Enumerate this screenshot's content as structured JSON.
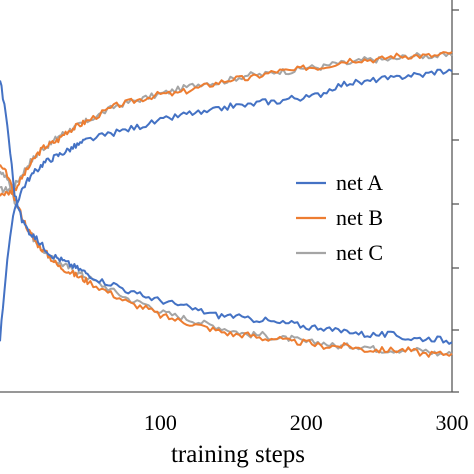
{
  "chart_data": {
    "type": "line",
    "xlabel": "training steps",
    "ylabel": "",
    "title": "",
    "xlim": [
      -10,
      300
    ],
    "ylim": [
      0,
      1
    ],
    "xticks": [
      100,
      200,
      300
    ],
    "legend_placement": "right",
    "grid": false,
    "series": [
      {
        "name": "net A",
        "color": "#4472C4",
        "kind": "rising",
        "x": [
          -10,
          -5,
          0,
          5,
          10,
          15,
          20,
          25,
          30,
          35,
          40,
          45,
          50,
          60,
          70,
          80,
          90,
          100,
          110,
          120,
          130,
          140,
          150,
          160,
          170,
          180,
          190,
          200,
          210,
          220,
          230,
          240,
          250,
          260,
          270,
          280,
          290,
          300
        ],
        "y": [
          0.14,
          0.35,
          0.48,
          0.53,
          0.56,
          0.58,
          0.6,
          0.61,
          0.62,
          0.63,
          0.64,
          0.65,
          0.66,
          0.67,
          0.68,
          0.69,
          0.7,
          0.71,
          0.72,
          0.73,
          0.73,
          0.74,
          0.75,
          0.75,
          0.76,
          0.76,
          0.77,
          0.77,
          0.78,
          0.8,
          0.81,
          0.81,
          0.82,
          0.82,
          0.83,
          0.83,
          0.84,
          0.84
        ]
      },
      {
        "name": "net B",
        "color": "#ED7D31",
        "kind": "rising",
        "x": [
          -10,
          -5,
          0,
          5,
          10,
          15,
          20,
          25,
          30,
          35,
          40,
          45,
          50,
          60,
          70,
          80,
          90,
          100,
          110,
          120,
          130,
          140,
          150,
          160,
          170,
          180,
          190,
          200,
          210,
          220,
          230,
          240,
          250,
          260,
          270,
          280,
          290,
          300
        ],
        "y": [
          0.52,
          0.52,
          0.53,
          0.56,
          0.59,
          0.62,
          0.64,
          0.65,
          0.66,
          0.68,
          0.69,
          0.7,
          0.71,
          0.73,
          0.75,
          0.76,
          0.77,
          0.78,
          0.78,
          0.79,
          0.8,
          0.81,
          0.82,
          0.82,
          0.83,
          0.84,
          0.84,
          0.85,
          0.85,
          0.86,
          0.87,
          0.87,
          0.87,
          0.88,
          0.88,
          0.88,
          0.88,
          0.89
        ]
      },
      {
        "name": "net C",
        "color": "#A5A5A5",
        "kind": "rising",
        "x": [
          -10,
          -5,
          0,
          5,
          10,
          15,
          20,
          25,
          30,
          35,
          40,
          45,
          50,
          60,
          70,
          80,
          90,
          100,
          110,
          120,
          130,
          140,
          150,
          160,
          170,
          180,
          190,
          200,
          210,
          220,
          230,
          240,
          250,
          260,
          270,
          280,
          290,
          300
        ],
        "y": [
          0.53,
          0.53,
          0.54,
          0.57,
          0.6,
          0.62,
          0.64,
          0.65,
          0.67,
          0.68,
          0.69,
          0.7,
          0.71,
          0.73,
          0.75,
          0.76,
          0.77,
          0.78,
          0.79,
          0.8,
          0.81,
          0.81,
          0.82,
          0.83,
          0.83,
          0.84,
          0.84,
          0.85,
          0.85,
          0.86,
          0.86,
          0.87,
          0.87,
          0.87,
          0.88,
          0.88,
          0.88,
          0.88
        ]
      },
      {
        "name": "net A",
        "color": "#4472C4",
        "kind": "falling",
        "x": [
          -10,
          -5,
          0,
          5,
          10,
          15,
          20,
          25,
          30,
          35,
          40,
          45,
          50,
          60,
          70,
          80,
          90,
          100,
          110,
          120,
          130,
          140,
          150,
          160,
          170,
          180,
          190,
          200,
          210,
          220,
          230,
          240,
          250,
          260,
          270,
          280,
          290,
          300
        ],
        "y": [
          0.82,
          0.7,
          0.52,
          0.45,
          0.42,
          0.4,
          0.38,
          0.36,
          0.35,
          0.34,
          0.33,
          0.32,
          0.31,
          0.29,
          0.28,
          0.26,
          0.25,
          0.24,
          0.23,
          0.22,
          0.21,
          0.2,
          0.2,
          0.19,
          0.19,
          0.18,
          0.18,
          0.17,
          0.17,
          0.16,
          0.16,
          0.15,
          0.15,
          0.15,
          0.14,
          0.14,
          0.14,
          0.13
        ]
      },
      {
        "name": "net B",
        "color": "#ED7D31",
        "kind": "falling",
        "x": [
          -10,
          -5,
          0,
          5,
          10,
          15,
          20,
          25,
          30,
          35,
          40,
          45,
          50,
          60,
          70,
          80,
          90,
          100,
          110,
          120,
          130,
          140,
          150,
          160,
          170,
          180,
          190,
          200,
          210,
          220,
          230,
          240,
          250,
          260,
          270,
          280,
          290,
          300
        ],
        "y": [
          0.59,
          0.57,
          0.51,
          0.46,
          0.42,
          0.39,
          0.37,
          0.35,
          0.33,
          0.32,
          0.31,
          0.3,
          0.29,
          0.27,
          0.25,
          0.23,
          0.22,
          0.2,
          0.19,
          0.18,
          0.17,
          0.16,
          0.15,
          0.15,
          0.14,
          0.14,
          0.13,
          0.13,
          0.12,
          0.12,
          0.12,
          0.11,
          0.11,
          0.11,
          0.11,
          0.1,
          0.1,
          0.1
        ]
      },
      {
        "name": "net C",
        "color": "#A5A5A5",
        "kind": "falling",
        "x": [
          -10,
          -5,
          0,
          5,
          10,
          15,
          20,
          25,
          30,
          35,
          40,
          45,
          50,
          60,
          70,
          80,
          90,
          100,
          110,
          120,
          130,
          140,
          150,
          160,
          170,
          180,
          190,
          200,
          210,
          220,
          230,
          240,
          250,
          260,
          270,
          280,
          290,
          300
        ],
        "y": [
          0.58,
          0.56,
          0.5,
          0.46,
          0.42,
          0.39,
          0.37,
          0.35,
          0.34,
          0.33,
          0.32,
          0.31,
          0.3,
          0.28,
          0.26,
          0.24,
          0.23,
          0.21,
          0.2,
          0.19,
          0.18,
          0.17,
          0.16,
          0.15,
          0.15,
          0.14,
          0.14,
          0.13,
          0.13,
          0.12,
          0.12,
          0.12,
          0.11,
          0.11,
          0.11,
          0.11,
          0.1,
          0.1
        ]
      }
    ],
    "legend": [
      {
        "name": "net A",
        "color": "#4472C4"
      },
      {
        "name": "net B",
        "color": "#ED7D31"
      },
      {
        "name": "net C",
        "color": "#A5A5A5"
      }
    ]
  }
}
